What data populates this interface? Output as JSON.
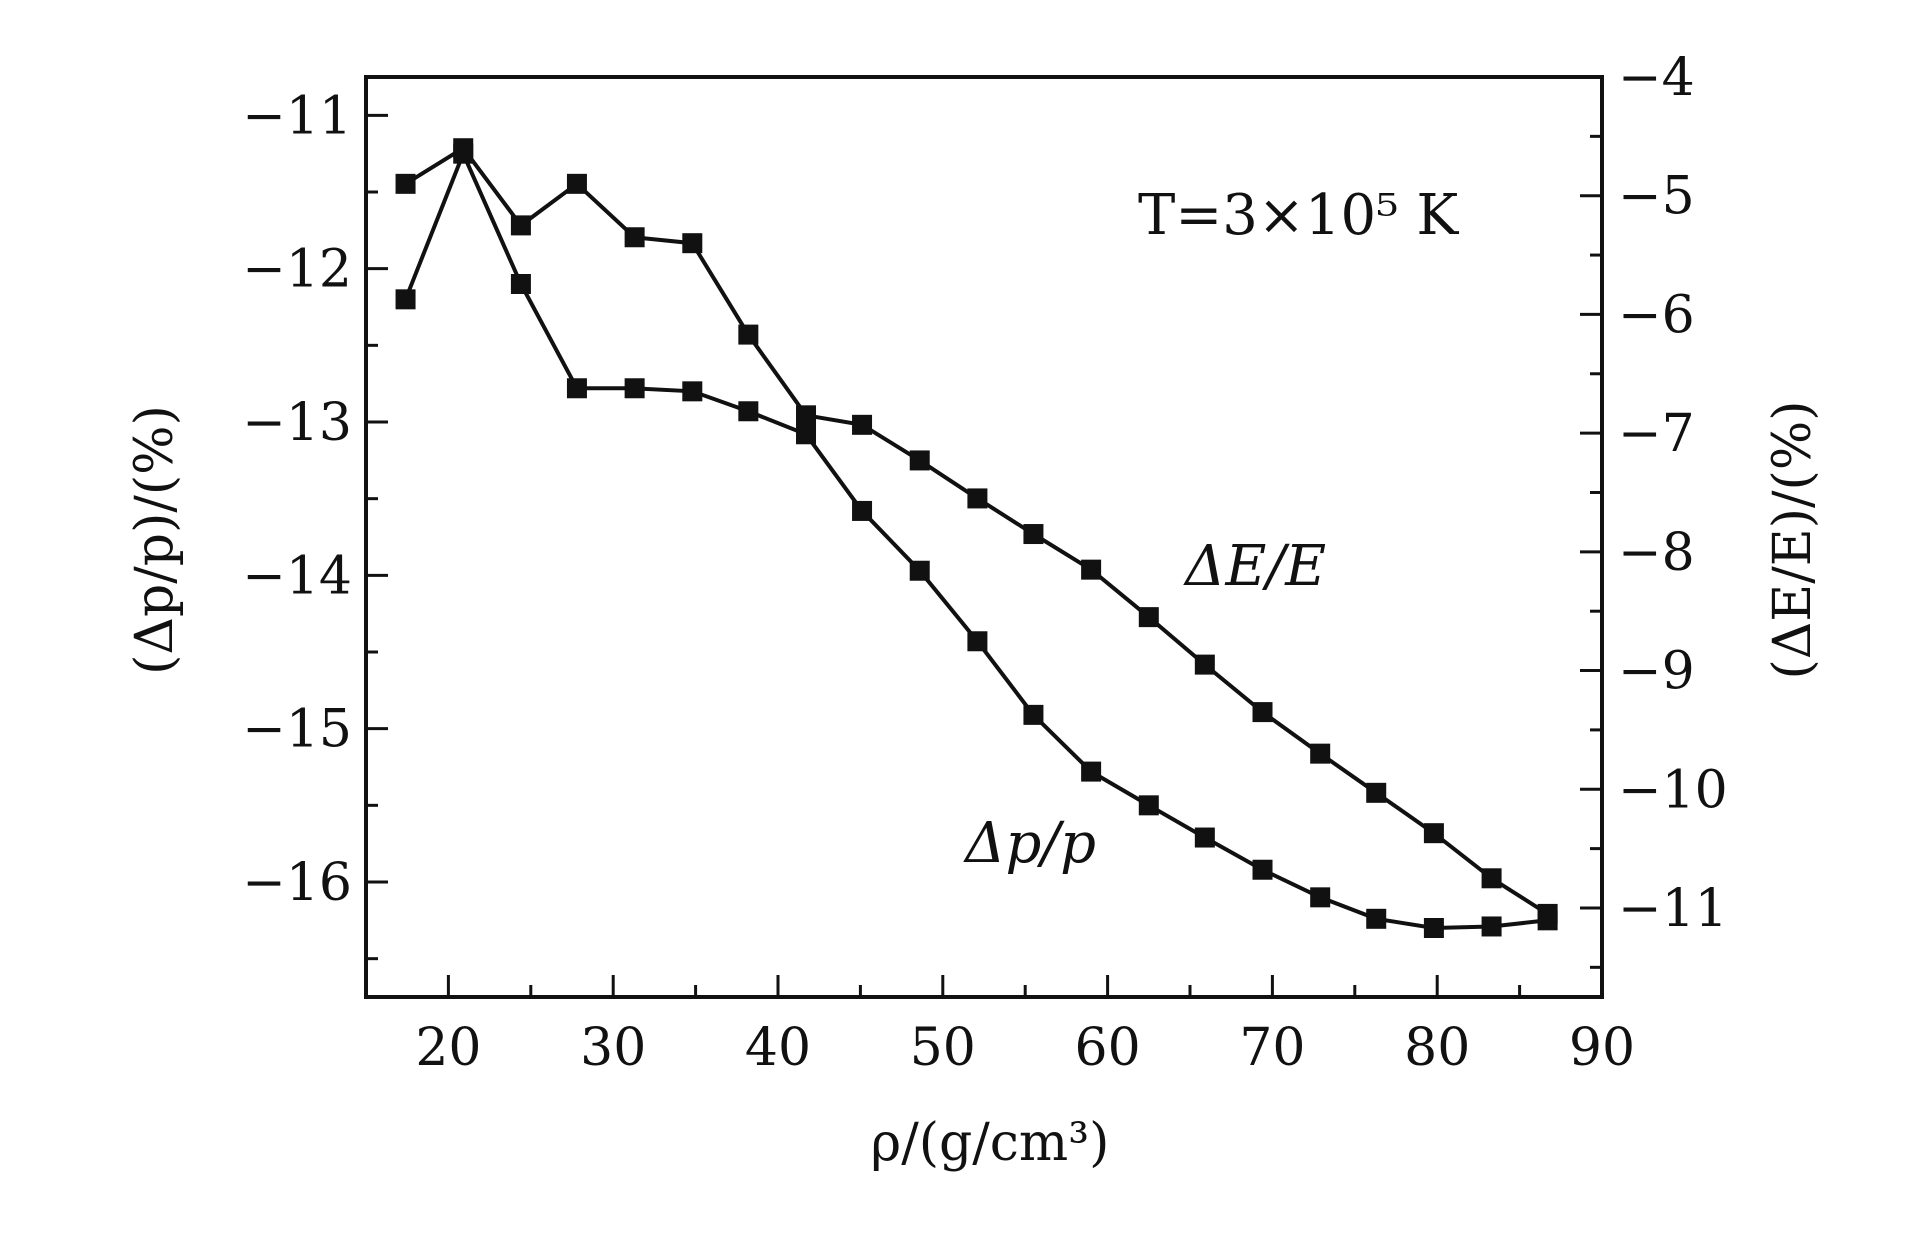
{
  "chart_data": {
    "type": "line",
    "xlabel": "ρ/(g/cm³)",
    "ylabel_left": "(Δp/p)/(%)",
    "ylabel_right": "(ΔE/E)/(%)",
    "annotation_T": "T=3×10⁵ K",
    "xlim": [
      15,
      90
    ],
    "ylim_left": [
      -16.75,
      -10.75
    ],
    "ylim_right": [
      -11.75,
      -4
    ],
    "x_ticks": [
      20,
      30,
      40,
      50,
      60,
      70,
      80,
      90
    ],
    "y_ticks_left": [
      -11,
      -12,
      -13,
      -14,
      -15,
      -16
    ],
    "y_ticks_right": [
      -4,
      -5,
      -6,
      -7,
      -8,
      -9,
      -10,
      -11
    ],
    "x_tick_labels": [
      "20",
      "30",
      "40",
      "50",
      "60",
      "70",
      "80",
      "90"
    ],
    "y_tick_labels_left": [
      "−11",
      "−12",
      "−13",
      "−14",
      "−15",
      "−16"
    ],
    "y_tick_labels_right": [
      "−4",
      "−5",
      "−6",
      "−7",
      "−8",
      "−9",
      "−10",
      "−11"
    ],
    "grid": false,
    "series": [
      {
        "name": "Δp/p",
        "axis": "left",
        "x": [
          17.4,
          20.9,
          24.4,
          27.8,
          31.3,
          34.8,
          38.2,
          41.7,
          45.1,
          48.6,
          52.1,
          55.5,
          59.0,
          62.5,
          65.9,
          69.4,
          72.9,
          76.3,
          79.8,
          83.3,
          86.7
        ],
        "y": [
          -12.2,
          -11.25,
          -12.1,
          -12.78,
          -12.78,
          -12.8,
          -12.93,
          -13.08,
          -13.58,
          -13.97,
          -14.43,
          -14.91,
          -15.28,
          -15.5,
          -15.71,
          -15.92,
          -16.1,
          -16.24,
          -16.3,
          -16.29,
          -16.25
        ]
      },
      {
        "name": "ΔE/E",
        "axis": "right",
        "x": [
          17.4,
          20.9,
          24.4,
          27.8,
          31.3,
          34.8,
          38.2,
          41.7,
          45.1,
          48.6,
          52.1,
          55.5,
          59.0,
          62.5,
          65.9,
          69.4,
          72.9,
          76.3,
          79.8,
          83.3,
          86.7
        ],
        "y": [
          -4.9,
          -4.6,
          -5.25,
          -4.9,
          -5.35,
          -5.4,
          -6.17,
          -6.85,
          -6.93,
          -7.23,
          -7.55,
          -7.85,
          -8.15,
          -8.55,
          -8.95,
          -9.35,
          -9.7,
          -10.03,
          -10.37,
          -10.75,
          -11.05
        ]
      }
    ],
    "series_labels": [
      "Δp/p",
      "ΔE/E"
    ]
  }
}
